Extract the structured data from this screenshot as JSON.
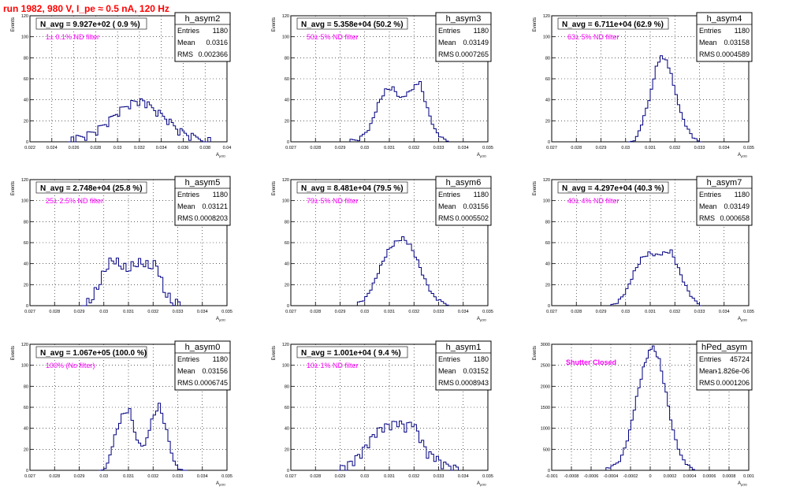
{
  "title": "run 1982,   980 V, I_pe ≈ 0.5 nA, 120 Hz",
  "chart_data": [
    {
      "type": "histogram",
      "name": "h_asym2",
      "entries": "1180",
      "mean": "0.0316",
      "rms": "0.002366",
      "navg": "N_avg = 9.927e+02 ( 0.9 %)",
      "filter": "1± 0.1% ND filter",
      "ylabel": "Events",
      "xlabel": "A",
      "xlim": [
        0.022,
        0.04
      ],
      "ylim": [
        0,
        120
      ],
      "xticks": [
        "0.022",
        "0.024",
        "0.026",
        "0.028",
        "0.03",
        "0.032",
        "0.034",
        "0.036",
        "0.038",
        "0.04"
      ],
      "yticks": [
        "0",
        "20",
        "40",
        "60",
        "80",
        "100",
        "120"
      ],
      "curve": [
        [
          0.0255,
          0
        ],
        [
          0.026,
          2
        ],
        [
          0.027,
          5
        ],
        [
          0.028,
          10
        ],
        [
          0.029,
          18
        ],
        [
          0.03,
          28
        ],
        [
          0.031,
          35
        ],
        [
          0.0318,
          38
        ],
        [
          0.0325,
          36
        ],
        [
          0.0335,
          28
        ],
        [
          0.0345,
          20
        ],
        [
          0.0355,
          10
        ],
        [
          0.0365,
          5
        ],
        [
          0.038,
          1
        ],
        [
          0.0385,
          0
        ]
      ]
    },
    {
      "type": "histogram",
      "name": "h_asym3",
      "entries": "1180",
      "mean": "0.03149",
      "rms": "0.0007265",
      "navg": "N_avg = 5.358e+04 (50.2 %)",
      "filter": "50± 5% ND filter",
      "ylabel": "Events",
      "xlabel": "A",
      "xlim": [
        0.027,
        0.035
      ],
      "ylim": [
        0,
        120
      ],
      "xticks": [
        "0.027",
        "0.028",
        "0.029",
        "0.03",
        "0.031",
        "0.032",
        "0.033",
        "0.034",
        "0.035"
      ],
      "yticks": [
        "0",
        "20",
        "40",
        "60",
        "80",
        "100",
        "120"
      ],
      "curve": [
        [
          0.0294,
          0
        ],
        [
          0.0298,
          3
        ],
        [
          0.0302,
          15
        ],
        [
          0.0305,
          35
        ],
        [
          0.0308,
          48
        ],
        [
          0.0311,
          50
        ],
        [
          0.0314,
          40
        ],
        [
          0.0317,
          45
        ],
        [
          0.032,
          52
        ],
        [
          0.0322,
          55
        ],
        [
          0.0325,
          30
        ],
        [
          0.0328,
          10
        ],
        [
          0.0331,
          2
        ],
        [
          0.0334,
          0
        ]
      ]
    },
    {
      "type": "histogram",
      "name": "h_asym4",
      "entries": "1180",
      "mean": "0.03158",
      "rms": "0.0004589",
      "navg": "N_avg = 6.711e+04 (62.9 %)",
      "filter": "63± 5% ND filter",
      "ylabel": "Events",
      "xlabel": "A",
      "xlim": [
        0.027,
        0.035
      ],
      "ylim": [
        0,
        120
      ],
      "xticks": [
        "0.027",
        "0.028",
        "0.029",
        "0.03",
        "0.031",
        "0.032",
        "0.033",
        "0.034",
        "0.035"
      ],
      "yticks": [
        "0",
        "20",
        "40",
        "60",
        "80",
        "100",
        "120"
      ],
      "curve": [
        [
          0.0301,
          0
        ],
        [
          0.0304,
          5
        ],
        [
          0.0307,
          25
        ],
        [
          0.031,
          50
        ],
        [
          0.0312,
          72
        ],
        [
          0.0314,
          82
        ],
        [
          0.0316,
          78
        ],
        [
          0.0318,
          65
        ],
        [
          0.032,
          45
        ],
        [
          0.0322,
          28
        ],
        [
          0.0325,
          12
        ],
        [
          0.0328,
          3
        ],
        [
          0.0331,
          0
        ]
      ]
    },
    {
      "type": "histogram",
      "name": "h_asym5",
      "entries": "1180",
      "mean": "0.03121",
      "rms": "0.0008203",
      "navg": "N_avg = 2.748e+04 (25.8 %)",
      "filter": "25± 2.5% ND filter",
      "ylabel": "Events",
      "xlabel": "A",
      "xlim": [
        0.027,
        0.035
      ],
      "ylim": [
        0,
        120
      ],
      "xticks": [
        "0.027",
        "0.028",
        "0.029",
        "0.03",
        "0.031",
        "0.032",
        "0.033",
        "0.034",
        "0.035"
      ],
      "yticks": [
        "0",
        "20",
        "40",
        "60",
        "80",
        "100",
        "120"
      ],
      "curve": [
        [
          0.0291,
          0
        ],
        [
          0.0294,
          5
        ],
        [
          0.0297,
          18
        ],
        [
          0.03,
          35
        ],
        [
          0.0303,
          45
        ],
        [
          0.0306,
          40
        ],
        [
          0.0309,
          35
        ],
        [
          0.0312,
          40
        ],
        [
          0.0315,
          42
        ],
        [
          0.0318,
          38
        ],
        [
          0.0321,
          40
        ],
        [
          0.0324,
          15
        ],
        [
          0.0327,
          5
        ],
        [
          0.0331,
          0
        ]
      ]
    },
    {
      "type": "histogram",
      "name": "h_asym6",
      "entries": "1180",
      "mean": "0.03156",
      "rms": "0.0005502",
      "navg": "N_avg = 8.481e+04 (79.5 %)",
      "filter": "79± 5% ND filter",
      "ylabel": "Events",
      "xlabel": "A",
      "xlim": [
        0.027,
        0.035
      ],
      "ylim": [
        0,
        120
      ],
      "xticks": [
        "0.027",
        "0.028",
        "0.029",
        "0.03",
        "0.031",
        "0.032",
        "0.033",
        "0.034",
        "0.035"
      ],
      "yticks": [
        "0",
        "20",
        "40",
        "60",
        "80",
        "100",
        "120"
      ],
      "curve": [
        [
          0.0297,
          0
        ],
        [
          0.03,
          5
        ],
        [
          0.0303,
          18
        ],
        [
          0.0306,
          35
        ],
        [
          0.0309,
          50
        ],
        [
          0.0312,
          58
        ],
        [
          0.0315,
          62
        ],
        [
          0.0318,
          55
        ],
        [
          0.0321,
          40
        ],
        [
          0.0324,
          22
        ],
        [
          0.0327,
          8
        ],
        [
          0.033,
          2
        ],
        [
          0.0334,
          0
        ]
      ]
    },
    {
      "type": "histogram",
      "name": "h_asym7",
      "entries": "1180",
      "mean": "0.03149",
      "rms": "0.000658",
      "navg": "N_avg = 4.297e+04 (40.3 %)",
      "filter": "40± 4% ND filter",
      "ylabel": "Events",
      "xlabel": "A",
      "xlim": [
        0.027,
        0.035
      ],
      "ylim": [
        0,
        120
      ],
      "xticks": [
        "0.027",
        "0.028",
        "0.029",
        "0.03",
        "0.031",
        "0.032",
        "0.033",
        "0.034",
        "0.035"
      ],
      "yticks": [
        "0",
        "20",
        "40",
        "60",
        "80",
        "100",
        "120"
      ],
      "curve": [
        [
          0.0294,
          0
        ],
        [
          0.0297,
          5
        ],
        [
          0.03,
          15
        ],
        [
          0.0303,
          32
        ],
        [
          0.0306,
          45
        ],
        [
          0.0309,
          50
        ],
        [
          0.0312,
          48
        ],
        [
          0.0315,
          50
        ],
        [
          0.0318,
          52
        ],
        [
          0.0321,
          35
        ],
        [
          0.0324,
          18
        ],
        [
          0.0327,
          6
        ],
        [
          0.0331,
          0
        ]
      ]
    },
    {
      "type": "histogram",
      "name": "h_asym0",
      "entries": "1180",
      "mean": "0.03156",
      "rms": "0.0006745",
      "navg": "N_avg = 1.067e+05 (100.0 %)",
      "filter": "100% (No filter)",
      "ylabel": "Events",
      "xlabel": "A",
      "xlim": [
        0.027,
        0.035
      ],
      "ylim": [
        0,
        120
      ],
      "xticks": [
        "0.027",
        "0.028",
        "0.029",
        "0.03",
        "0.031",
        "0.032",
        "0.033",
        "0.034",
        "0.035"
      ],
      "yticks": [
        "0",
        "20",
        "40",
        "60",
        "80",
        "100",
        "120"
      ],
      "curve": [
        [
          0.0298,
          0
        ],
        [
          0.0301,
          8
        ],
        [
          0.0304,
          35
        ],
        [
          0.0307,
          55
        ],
        [
          0.031,
          60
        ],
        [
          0.0313,
          30
        ],
        [
          0.0316,
          25
        ],
        [
          0.0319,
          50
        ],
        [
          0.0322,
          65
        ],
        [
          0.0325,
          40
        ],
        [
          0.0328,
          10
        ],
        [
          0.0331,
          2
        ],
        [
          0.0334,
          0
        ]
      ]
    },
    {
      "type": "histogram",
      "name": "h_asym1",
      "entries": "1180",
      "mean": "0.03152",
      "rms": "0.0008943",
      "navg": "N_avg = 1.001e+04 ( 9.4 %)",
      "filter": "10± 1% ND filter",
      "ylabel": "Events",
      "xlabel": "A",
      "xlim": [
        0.027,
        0.035
      ],
      "ylim": [
        0,
        120
      ],
      "xticks": [
        "0.027",
        "0.028",
        "0.029",
        "0.03",
        "0.031",
        "0.032",
        "0.033",
        "0.034",
        "0.035"
      ],
      "yticks": [
        "0",
        "20",
        "40",
        "60",
        "80",
        "100",
        "120"
      ],
      "curve": [
        [
          0.0289,
          0
        ],
        [
          0.0292,
          3
        ],
        [
          0.0295,
          8
        ],
        [
          0.0298,
          15
        ],
        [
          0.0301,
          25
        ],
        [
          0.0304,
          35
        ],
        [
          0.0307,
          40
        ],
        [
          0.031,
          42
        ],
        [
          0.0313,
          45
        ],
        [
          0.0316,
          40
        ],
        [
          0.0319,
          45
        ],
        [
          0.0322,
          30
        ],
        [
          0.0325,
          15
        ],
        [
          0.0328,
          12
        ],
        [
          0.0331,
          5
        ],
        [
          0.0335,
          2
        ],
        [
          0.0338,
          0
        ]
      ]
    },
    {
      "type": "histogram",
      "name": "hPed_asym",
      "entries": "45724",
      "mean": "-1.826e-06",
      "rms": "0.0001206",
      "navg": "",
      "filter": "Shutter Closed",
      "ylabel": "Events",
      "xlabel": "A",
      "xlim": [
        -0.001,
        0.001
      ],
      "ylim": [
        0,
        3000
      ],
      "xticks": [
        "-0.001",
        "-0.0008",
        "-0.0006",
        "-0.0004",
        "-0.0002",
        "0",
        "0.0002",
        "0.0004",
        "0.0006",
        "0.0008",
        "0.001"
      ],
      "yticks": [
        "0",
        "500",
        "1000",
        "1500",
        "2000",
        "2500",
        "3000"
      ],
      "curve": [
        [
          -0.00045,
          0
        ],
        [
          -0.0004,
          50
        ],
        [
          -0.0003,
          300
        ],
        [
          -0.00022,
          900
        ],
        [
          -0.00015,
          1700
        ],
        [
          -8e-05,
          2400
        ],
        [
          -2e-05,
          2800
        ],
        [
          2e-05,
          2900
        ],
        [
          8e-05,
          2600
        ],
        [
          0.00015,
          1800
        ],
        [
          0.00022,
          900
        ],
        [
          0.0003,
          300
        ],
        [
          0.00038,
          60
        ],
        [
          0.00045,
          0
        ]
      ]
    }
  ]
}
